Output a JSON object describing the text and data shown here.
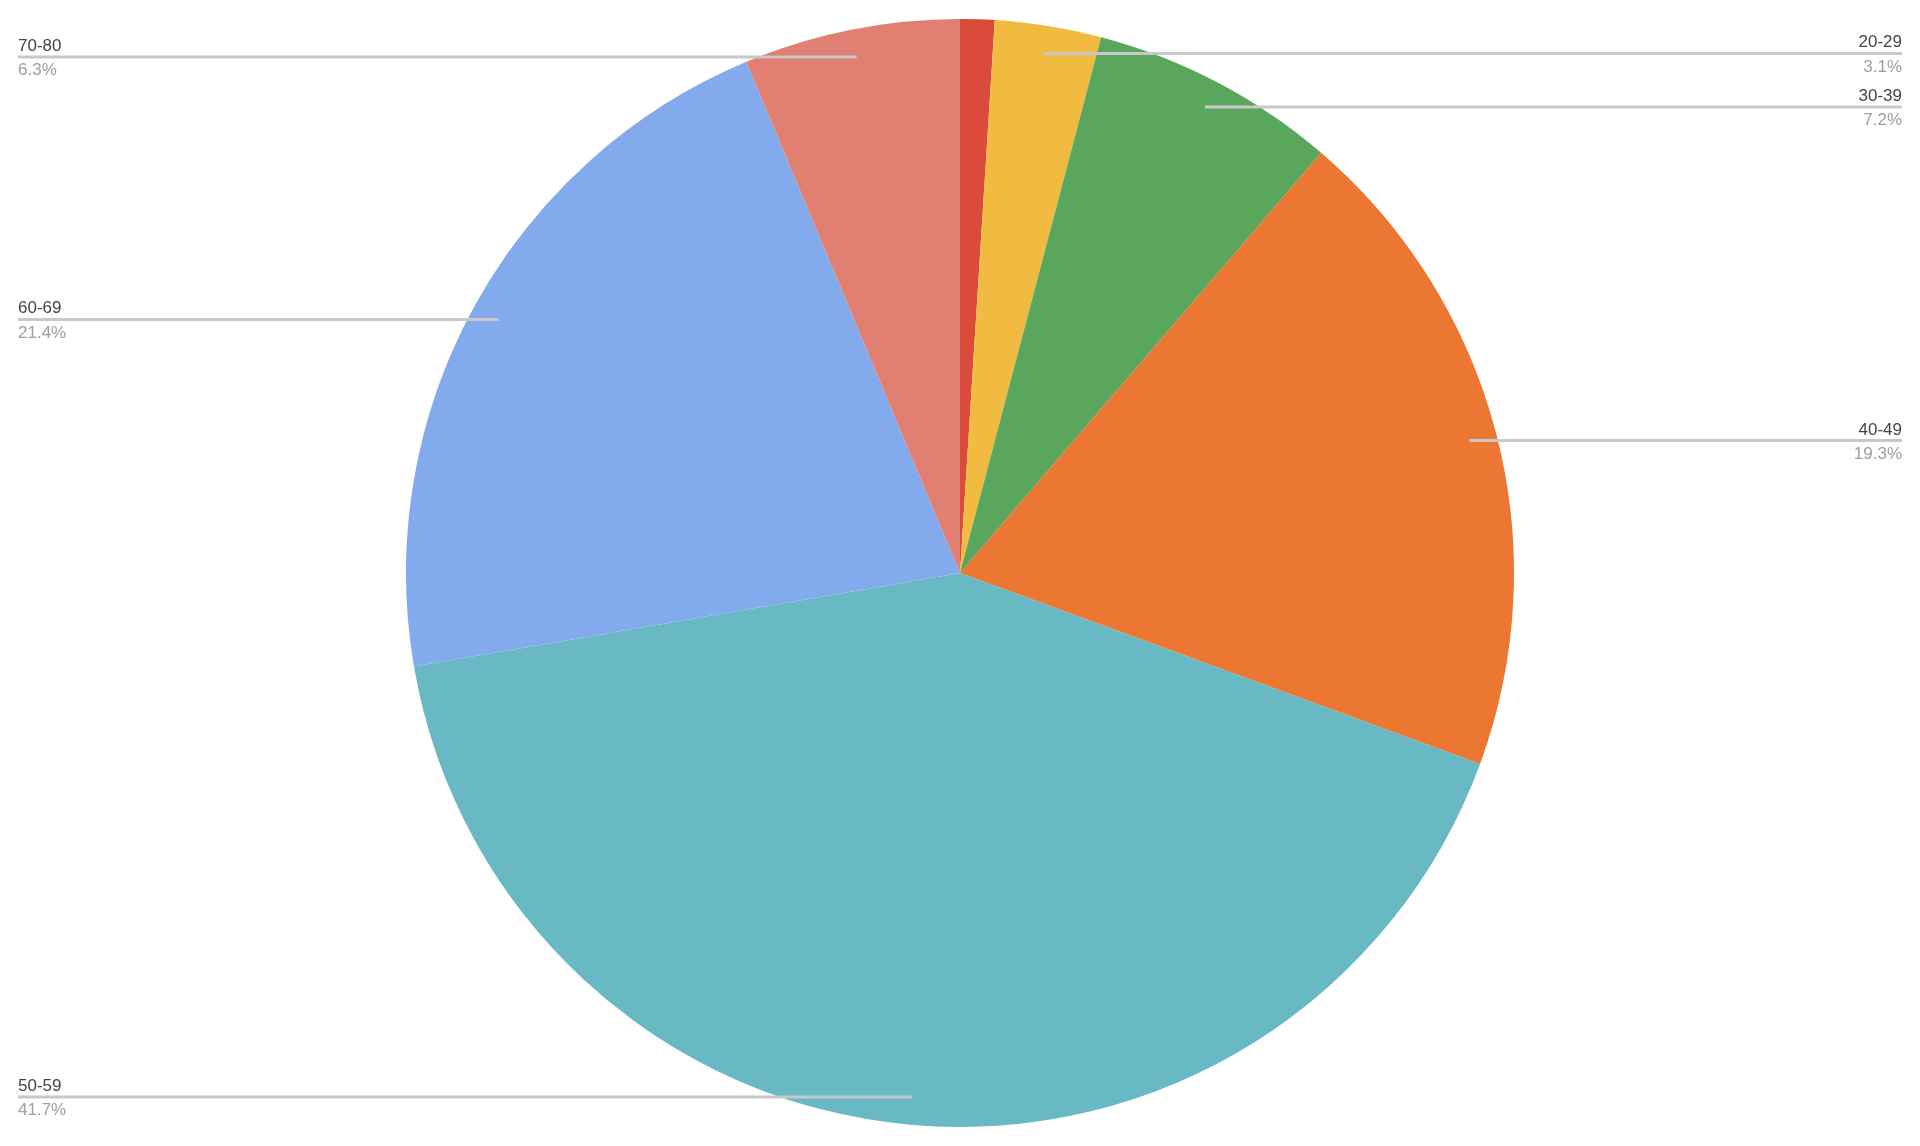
{
  "chart_data": {
    "type": "pie",
    "categories": [
      null,
      "20-29",
      "30-39",
      "40-49",
      "50-59",
      "60-69",
      "70-80"
    ],
    "values": [
      1.0,
      3.1,
      7.2,
      19.3,
      41.7,
      21.4,
      6.3
    ],
    "colors": [
      "#db4b3c",
      "#f1bb41",
      "#5aa65c",
      "#ec7733",
      "#68b9c3",
      "#84aaee",
      "#e07f72"
    ],
    "value_labels": [
      null,
      "3.1%",
      "7.2%",
      "19.3%",
      "41.7%",
      "21.4%",
      "6.3%"
    ],
    "legend": false
  }
}
